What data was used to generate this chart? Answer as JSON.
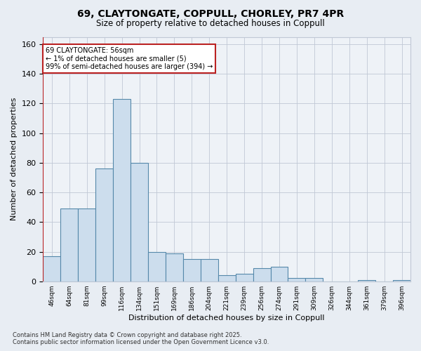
{
  "title_line1": "69, CLAYTONGATE, COPPULL, CHORLEY, PR7 4PR",
  "title_line2": "Size of property relative to detached houses in Coppull",
  "xlabel": "Distribution of detached houses by size in Coppull",
  "ylabel": "Number of detached properties",
  "bar_color": "#ccdded",
  "bar_edge_color": "#5588aa",
  "annotation_line_color": "#bb2222",
  "annotation_box_color": "#bb2222",
  "annotation_text": "69 CLAYTONGATE: 56sqm\n← 1% of detached houses are smaller (5)\n99% of semi-detached houses are larger (394) →",
  "categories": [
    "46sqm",
    "64sqm",
    "81sqm",
    "99sqm",
    "116sqm",
    "134sqm",
    "151sqm",
    "169sqm",
    "186sqm",
    "204sqm",
    "221sqm",
    "239sqm",
    "256sqm",
    "274sqm",
    "291sqm",
    "309sqm",
    "326sqm",
    "344sqm",
    "361sqm",
    "379sqm",
    "396sqm"
  ],
  "values": [
    17,
    49,
    49,
    76,
    123,
    80,
    20,
    19,
    15,
    15,
    4,
    5,
    9,
    10,
    2,
    2,
    0,
    0,
    1,
    0,
    1
  ],
  "annotation_bar_index": 0,
  "ylim": [
    0,
    165
  ],
  "yticks": [
    0,
    20,
    40,
    60,
    80,
    100,
    120,
    140,
    160
  ],
  "footer_line1": "Contains HM Land Registry data © Crown copyright and database right 2025.",
  "footer_line2": "Contains public sector information licensed under the Open Government Licence v3.0.",
  "background_color": "#e8edf3",
  "plot_background_color": "#eef2f7",
  "grid_color": "#c0c8d5"
}
